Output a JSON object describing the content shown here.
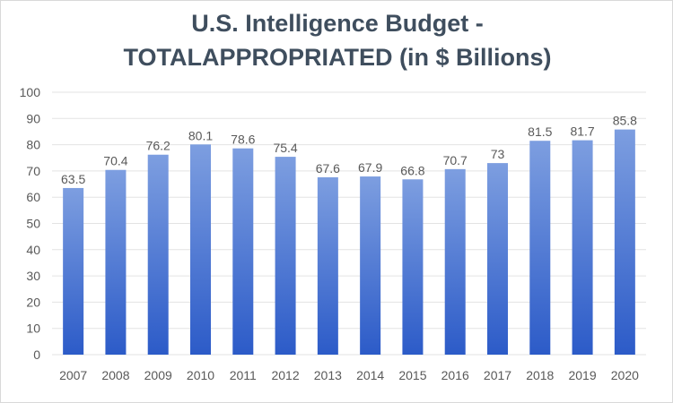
{
  "chart_data": {
    "type": "bar",
    "title_lines": [
      "U.S. Intelligence Budget -",
      "TOTALAPPROPRIATED (in $ Billions)"
    ],
    "categories": [
      "2007",
      "2008",
      "2009",
      "2010",
      "2011",
      "2012",
      "2013",
      "2014",
      "2015",
      "2016",
      "2017",
      "2018",
      "2019",
      "2020"
    ],
    "values": [
      63.5,
      70.4,
      76.2,
      80.1,
      78.6,
      75.4,
      67.6,
      67.9,
      66.8,
      70.7,
      73,
      81.5,
      81.7,
      85.8
    ],
    "value_labels": [
      "63.5",
      "70.4",
      "76.2",
      "80.1",
      "78.6",
      "75.4",
      "67.6",
      "67.9",
      "66.8",
      "70.7",
      "73",
      "81.5",
      "81.7",
      "85.8"
    ],
    "y_ticks": [
      "0",
      "10",
      "20",
      "30",
      "40",
      "50",
      "60",
      "70",
      "80",
      "90",
      "100"
    ],
    "ylim": [
      0,
      100
    ],
    "grid": true,
    "legend": "none",
    "colors": {
      "bar_top": "#7d9ee0",
      "bar_bottom": "#2c5bc8",
      "grid": "#e3e3e3",
      "text": "#595959",
      "title": "#3f4e5e"
    }
  }
}
